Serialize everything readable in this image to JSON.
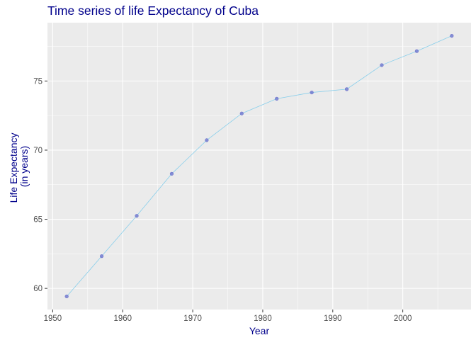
{
  "chart_data": {
    "type": "line",
    "title": "Time series of life Expectancy of Cuba",
    "xlabel": "Year",
    "ylabel_lines": [
      "Life Expectancy",
      "(in years)"
    ],
    "x": [
      1952,
      1957,
      1962,
      1967,
      1972,
      1977,
      1982,
      1987,
      1992,
      1997,
      2002,
      2007
    ],
    "series": [
      {
        "values": [
          59.42,
          62.33,
          65.25,
          68.29,
          70.72,
          72.65,
          73.72,
          74.17,
          74.41,
          76.15,
          77.16,
          78.27
        ]
      }
    ],
    "xlim": [
      1949.25,
      2009.75
    ],
    "ylim": [
      58.47,
      79.22
    ],
    "x_ticks": [
      1950,
      1960,
      1970,
      1980,
      1990,
      2000
    ],
    "x_tick_labels": [
      "1950",
      "1960",
      "1970",
      "1980",
      "1990",
      "2000"
    ],
    "y_ticks": [
      60,
      65,
      70,
      75
    ],
    "y_tick_labels": [
      "60",
      "65",
      "70",
      "75"
    ],
    "grid": true,
    "colors": {
      "title": "#00008b",
      "axis_title": "#00008b",
      "line": "#87ceeb",
      "point": "#6a70cc",
      "panel": "#ebebeb",
      "grid": "#ffffff"
    }
  }
}
